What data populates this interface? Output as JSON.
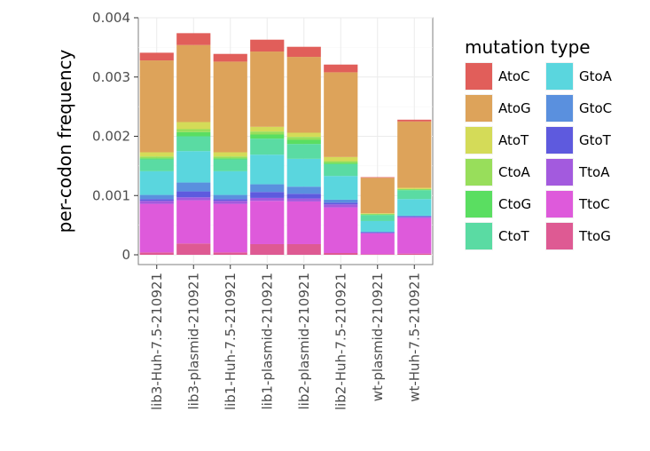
{
  "chart_data": {
    "type": "bar",
    "stacked": true,
    "ylabel": "per-codon frequency",
    "ylim": [
      0,
      0.004
    ],
    "y_ticks": [
      0,
      0.001,
      0.002,
      0.003,
      0.004
    ],
    "y_tick_labels": [
      "0",
      "0.001",
      "0.002",
      "0.003",
      "0.004"
    ],
    "grid": true,
    "legend_position": "right",
    "legend_title": "mutation type",
    "categories": [
      "lib3-Huh-7.5-210921",
      "lib3-plasmid-210921",
      "lib1-Huh-7.5-210921",
      "lib1-plasmid-210921",
      "lib2-plasmid-210921",
      "lib2-Huh-7.5-210921",
      "wt-plasmid-210921",
      "wt-Huh-7.5-210921"
    ],
    "series": [
      {
        "name": "AtoC",
        "color": "#E15E5A",
        "values": [
          0.00013,
          0.0002,
          0.00013,
          0.0002,
          0.00017,
          0.00013,
          1e-05,
          3e-05
        ]
      },
      {
        "name": "AtoG",
        "color": "#DDA35A",
        "values": [
          0.00155,
          0.0013,
          0.00153,
          0.00127,
          0.00128,
          0.00143,
          0.0006,
          0.00112
        ]
      },
      {
        "name": "AtoT",
        "color": "#D4DB58",
        "values": [
          7e-05,
          0.00012,
          7e-05,
          8e-05,
          7e-05,
          7e-05,
          1e-05,
          2e-05
        ]
      },
      {
        "name": "CtoA",
        "color": "#98DE5B",
        "values": [
          3e-05,
          5e-05,
          3e-05,
          5e-05,
          5e-05,
          3e-05,
          1e-05,
          1e-05
        ]
      },
      {
        "name": "CtoG",
        "color": "#5ADE61",
        "values": [
          2e-05,
          7e-05,
          2e-05,
          7e-05,
          7e-05,
          2e-05,
          1e-05,
          1e-05
        ]
      },
      {
        "name": "CtoT",
        "color": "#5ADBA3",
        "values": [
          0.0002,
          0.00025,
          0.0002,
          0.00027,
          0.00025,
          0.0002,
          0.0001,
          0.00015
        ]
      },
      {
        "name": "GtoA",
        "color": "#5AD6DE",
        "values": [
          0.0004,
          0.00053,
          0.0004,
          0.0005,
          0.00047,
          0.0004,
          0.00018,
          0.00028
        ]
      },
      {
        "name": "GtoC",
        "color": "#5A90DE",
        "values": [
          7e-05,
          0.00015,
          7e-05,
          0.00013,
          0.00012,
          5e-05,
          1e-05,
          1e-05
        ]
      },
      {
        "name": "GtoT",
        "color": "#5E5ADE",
        "values": [
          3e-05,
          0.0001,
          3e-05,
          0.0001,
          8e-05,
          3e-05,
          1e-05,
          1e-05
        ]
      },
      {
        "name": "TtoA",
        "color": "#A35ADE",
        "values": [
          5e-05,
          5e-05,
          5e-05,
          5e-05,
          5e-05,
          5e-05,
          1e-05,
          2e-05
        ]
      },
      {
        "name": "TtoC",
        "color": "#DE5ADB",
        "values": [
          0.00082,
          0.00073,
          0.00082,
          0.00073,
          0.00072,
          0.00077,
          0.00035,
          0.0006
        ]
      },
      {
        "name": "TtoG",
        "color": "#DE5A93",
        "values": [
          4e-05,
          0.00019,
          4e-05,
          0.00018,
          0.00018,
          3e-05,
          1e-05,
          2e-05
        ]
      }
    ]
  }
}
